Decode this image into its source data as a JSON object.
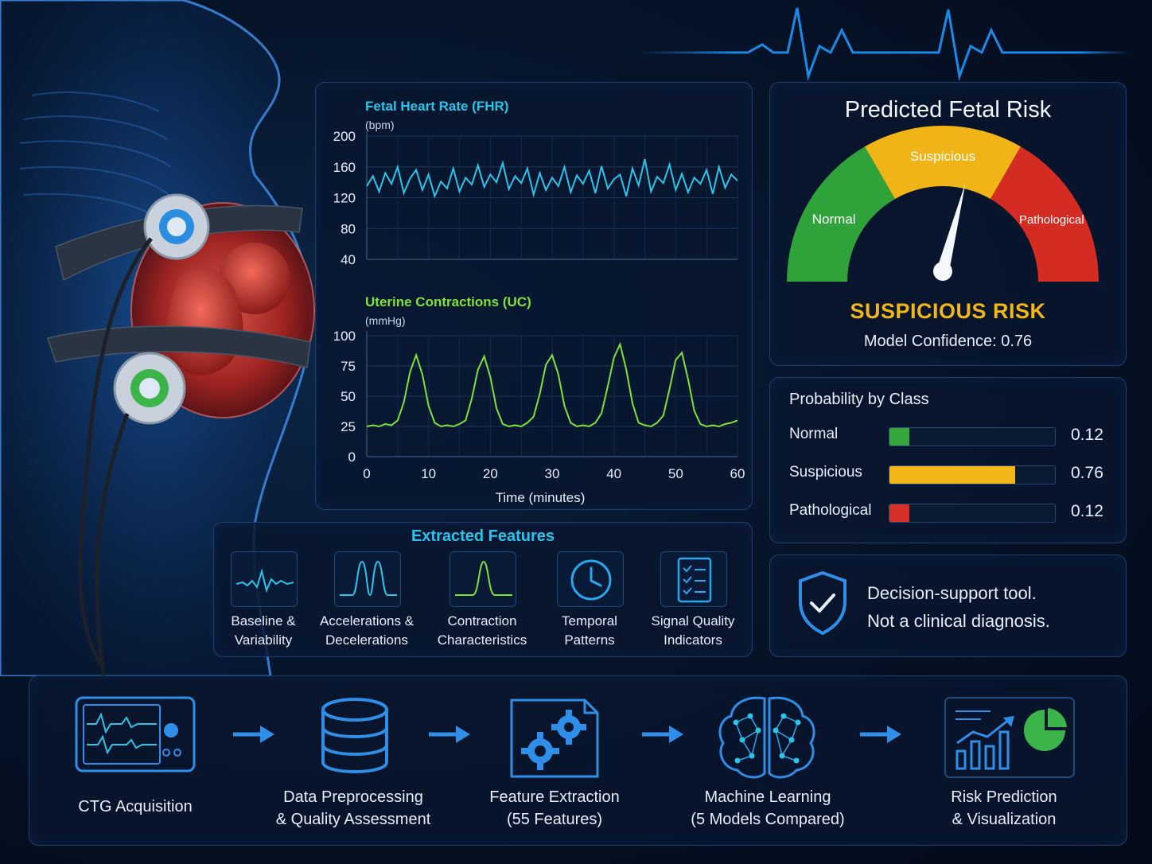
{
  "fhr_chart": {
    "title": "Fetal Heart Rate (FHR)",
    "unit": "(bpm)",
    "y_ticks": [
      "200",
      "160",
      "120",
      "80",
      "40"
    ],
    "color": "#29c6ea"
  },
  "uc_chart": {
    "title": "Uterine Contractions (UC)",
    "unit": "(mmHg)",
    "y_ticks": [
      "100",
      "75",
      "50",
      "25",
      "0"
    ],
    "x_ticks": [
      "0",
      "10",
      "20",
      "30",
      "40",
      "50",
      "60"
    ],
    "xlabel": "Time (minutes)",
    "color": "#7fe23c"
  },
  "chart_data": [
    {
      "type": "line",
      "title": "Fetal Heart Rate (FHR)",
      "ylabel": "(bpm)",
      "ylim": [
        40,
        200
      ],
      "xlim": [
        0,
        60
      ],
      "grid": true,
      "x": [
        0,
        1,
        2,
        3,
        4,
        5,
        6,
        7,
        8,
        9,
        10,
        11,
        12,
        13,
        14,
        15,
        16,
        17,
        18,
        19,
        20,
        21,
        22,
        23,
        24,
        25,
        26,
        27,
        28,
        29,
        30,
        31,
        32,
        33,
        34,
        35,
        36,
        37,
        38,
        39,
        40,
        41,
        42,
        43,
        44,
        45,
        46,
        47,
        48,
        49,
        50,
        51,
        52,
        53,
        54,
        55,
        56,
        57,
        58,
        59,
        60
      ],
      "series": [
        {
          "values": [
            135,
            148,
            128,
            152,
            138,
            160,
            126,
            145,
            156,
            130,
            150,
            122,
            141,
            132,
            158,
            128,
            146,
            137,
            162,
            134,
            150,
            140,
            165,
            131,
            148,
            139,
            158,
            124,
            152,
            130,
            146,
            135,
            160,
            127,
            149,
            138,
            155,
            126,
            161,
            132,
            144,
            150,
            122,
            158,
            136,
            170,
            128,
            147,
            139,
            163,
            130,
            151,
            127,
            146,
            138,
            156,
            125,
            160,
            133,
            150,
            142
          ]
        }
      ]
    },
    {
      "type": "line",
      "title": "Uterine Contractions (UC)",
      "xlabel": "Time (minutes)",
      "ylabel": "(mmHg)",
      "ylim": [
        0,
        100
      ],
      "xlim": [
        0,
        60
      ],
      "grid": true,
      "x": [
        0,
        1,
        2,
        3,
        4,
        5,
        6,
        7,
        8,
        9,
        10,
        11,
        12,
        13,
        14,
        15,
        16,
        17,
        18,
        19,
        20,
        21,
        22,
        23,
        24,
        25,
        26,
        27,
        28,
        29,
        30,
        31,
        32,
        33,
        34,
        35,
        36,
        37,
        38,
        39,
        40,
        41,
        42,
        43,
        44,
        45,
        46,
        47,
        48,
        49,
        50,
        51,
        52,
        53,
        54,
        55,
        56,
        57,
        58,
        59,
        60
      ],
      "series": [
        {
          "values": [
            25,
            26,
            25,
            27,
            26,
            30,
            45,
            70,
            84,
            68,
            42,
            28,
            25,
            26,
            25,
            27,
            30,
            48,
            72,
            83,
            66,
            40,
            27,
            25,
            26,
            25,
            28,
            33,
            52,
            76,
            84,
            68,
            42,
            28,
            25,
            26,
            25,
            28,
            36,
            58,
            82,
            93,
            72,
            44,
            28,
            26,
            25,
            28,
            34,
            56,
            80,
            86,
            64,
            38,
            27,
            25,
            26,
            25,
            27,
            28,
            30
          ]
        }
      ]
    },
    {
      "type": "bar",
      "title": "Probability by Class",
      "categories": [
        "Normal",
        "Suspicious",
        "Pathological"
      ],
      "values": [
        0.12,
        0.76,
        0.12
      ],
      "ylim": [
        0,
        1
      ]
    }
  ],
  "gauge": {
    "title": "Predicted Fetal Risk",
    "segments": [
      {
        "label": "Normal",
        "color": "#2fa33a"
      },
      {
        "label": "Suspicious",
        "color": "#f0b416"
      },
      {
        "label": "Pathological",
        "color": "#d42b22"
      }
    ],
    "needle_value": 0.58,
    "risk_label": "SUSPICIOUS RISK",
    "confidence": "Model Confidence: 0.76"
  },
  "probabilities": {
    "title": "Probability by Class",
    "rows": [
      {
        "name": "Normal",
        "value": 0.12,
        "value_text": "0.12",
        "color": "#34a63c"
      },
      {
        "name": "Suspicious",
        "value": 0.76,
        "value_text": "0.76",
        "color": "#f2b619"
      },
      {
        "name": "Pathological",
        "value": 0.12,
        "value_text": "0.12",
        "color": "#d6302a"
      }
    ]
  },
  "disclaimer": {
    "line1": "Decision-support tool.",
    "line2": "Not a clinical diagnosis."
  },
  "features": {
    "title": "Extracted Features",
    "items": [
      {
        "line1": "Baseline &",
        "line2": "Variability",
        "icon": "waveform-icon"
      },
      {
        "line1": "Accelerations &",
        "line2": "Decelerations",
        "icon": "double-peak-icon"
      },
      {
        "line1": "Contraction",
        "line2": "Characteristics",
        "icon": "single-peak-icon"
      },
      {
        "line1": "Temporal",
        "line2": "Patterns",
        "icon": "clock-icon"
      },
      {
        "line1": "Signal Quality",
        "line2": "Indicators",
        "icon": "checklist-icon"
      }
    ]
  },
  "pipeline": {
    "steps": [
      {
        "line1": "CTG Acquisition",
        "line2": "",
        "icon": "ctg-monitor-icon"
      },
      {
        "line1": "Data Preprocessing",
        "line2": "& Quality Assessment",
        "icon": "database-icon"
      },
      {
        "line1": "Feature Extraction",
        "line2": "(55 Features)",
        "icon": "gears-document-icon"
      },
      {
        "line1": "Machine Learning",
        "line2": "(5 Models Compared)",
        "icon": "brain-network-icon"
      },
      {
        "line1": "Risk Prediction",
        "line2": "& Visualization",
        "icon": "chart-report-icon"
      }
    ]
  }
}
